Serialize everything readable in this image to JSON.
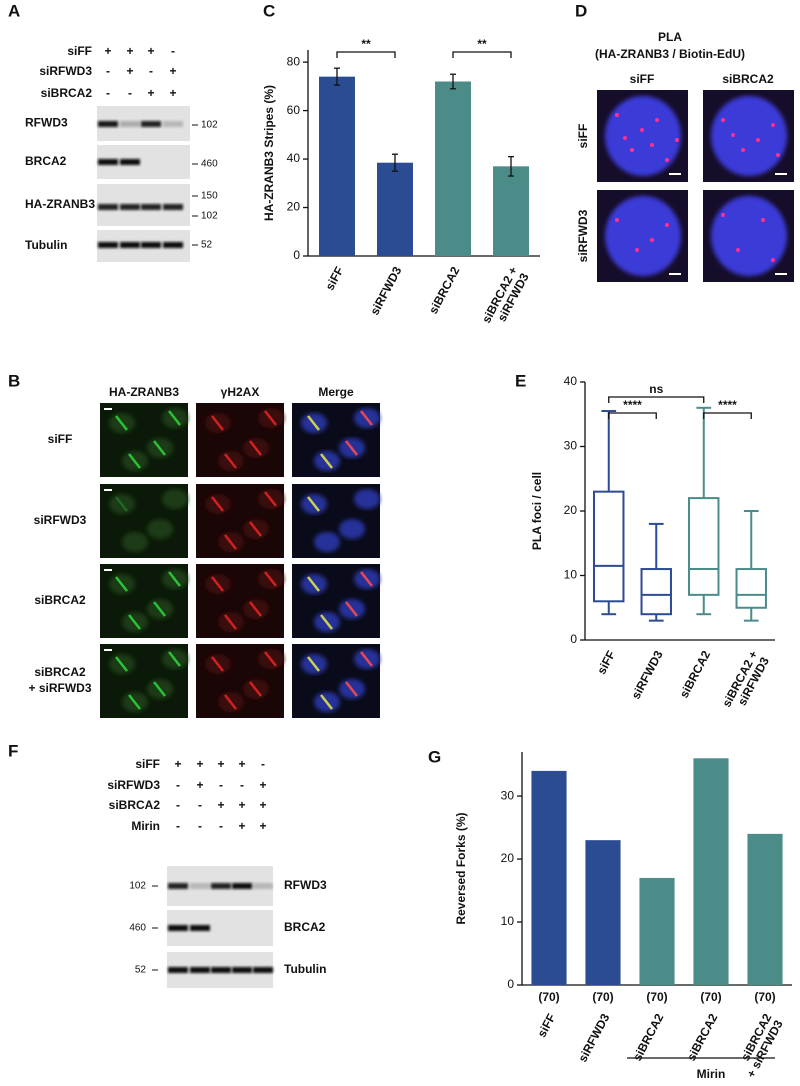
{
  "panel_labels": [
    "A",
    "B",
    "C",
    "D",
    "E",
    "F",
    "G"
  ],
  "blot_a": {
    "conditions": [
      {
        "name": "siFF",
        "signs": [
          "+",
          "+",
          "+",
          "-"
        ]
      },
      {
        "name": "siRFWD3",
        "signs": [
          "-",
          "+",
          "-",
          "+"
        ]
      },
      {
        "name": "siBRCA2",
        "signs": [
          "-",
          "-",
          "+",
          "+"
        ]
      }
    ],
    "rows": [
      {
        "name": "RFWD3",
        "markers": [
          "102"
        ]
      },
      {
        "name": "BRCA2",
        "markers": [
          "460"
        ]
      },
      {
        "name": "HA-ZRANB3",
        "markers": [
          "150",
          "102"
        ]
      },
      {
        "name": "Tubulin",
        "markers": [
          "52"
        ]
      }
    ]
  },
  "pla": {
    "title": [
      "PLA",
      "(HA-ZRANB3 / Biotin-EdU)"
    ],
    "columns": [
      "siFF",
      "siBRCA2"
    ],
    "rows": [
      "siFF",
      "siRFWD3"
    ]
  },
  "microscopy": {
    "columns": [
      "HA-ZRANB3",
      "γH2AX",
      "Merge"
    ],
    "rows": [
      [
        "siFF"
      ],
      [
        "siRFWD3"
      ],
      [
        "siBRCA2"
      ],
      [
        "siBRCA2",
        "+ siRFWD3"
      ]
    ]
  },
  "blot_f": {
    "conditions": [
      {
        "name": "siFF",
        "signs": [
          "+",
          "+",
          "+",
          "+",
          "-"
        ]
      },
      {
        "name": "siRFWD3",
        "signs": [
          "-",
          "+",
          "-",
          "-",
          "+"
        ]
      },
      {
        "name": "siBRCA2",
        "signs": [
          "-",
          "-",
          "+",
          "+",
          "+"
        ]
      },
      {
        "name": "Mirin",
        "signs": [
          "-",
          "-",
          "-",
          "+",
          "+"
        ]
      }
    ],
    "rows": [
      {
        "name": "RFWD3",
        "markers": [
          "102"
        ]
      },
      {
        "name": "BRCA2",
        "markers": [
          "460"
        ]
      },
      {
        "name": "Tubulin",
        "markers": [
          "52"
        ]
      }
    ]
  },
  "chart_data": [
    {
      "type": "bar",
      "ylabel": "HA-ZRANB3 Stripes (%)",
      "categories": [
        [
          "siFF"
        ],
        [
          "siRFWD3"
        ],
        [
          "siBRCA2"
        ],
        [
          "siBRCA2 +",
          "siRFWD3"
        ]
      ],
      "values": [
        74,
        38.5,
        72,
        37
      ],
      "errors": [
        3.5,
        3.5,
        3,
        4
      ],
      "colors": [
        "#2b4b93",
        "#2b4b93",
        "#4b8b88",
        "#4b8b88"
      ],
      "ylim": [
        0,
        85
      ],
      "yticks": [
        0,
        20,
        40,
        60,
        80
      ],
      "annotations": [
        "**",
        "**"
      ]
    },
    {
      "type": "box",
      "ylabel": "PLA foci / cell",
      "categories": [
        [
          "siFF"
        ],
        [
          "siRFWD3"
        ],
        [
          "siBRCA2"
        ],
        [
          "siBRCA2 +",
          "siRFWD3"
        ]
      ],
      "boxes": [
        {
          "min": 4,
          "q1": 6,
          "median": 11.5,
          "q3": 23,
          "max": 35.5
        },
        {
          "min": 3,
          "q1": 4,
          "median": 7,
          "q3": 11,
          "max": 18
        },
        {
          "min": 4,
          "q1": 7,
          "median": 11,
          "q3": 22,
          "max": 36
        },
        {
          "min": 3,
          "q1": 5,
          "median": 7,
          "q3": 11,
          "max": 20
        }
      ],
      "colors": [
        "#2b4b93",
        "#2b4b93",
        "#4b8b88",
        "#4b8b88"
      ],
      "ylim": [
        0,
        40
      ],
      "yticks": [
        0,
        10,
        20,
        30,
        40
      ],
      "annotations": [
        "ns",
        "****",
        "****"
      ]
    },
    {
      "type": "bar",
      "ylabel": "Reversed Forks (%)",
      "categories": [
        [
          "siFF"
        ],
        [
          "siRFWD3"
        ],
        [
          "siBRCA2"
        ],
        [
          "siBRCA2"
        ],
        [
          "siBRCA2",
          "+ siRFWD3"
        ]
      ],
      "values": [
        34,
        23,
        17,
        36,
        24
      ],
      "n_labels": [
        "(70)",
        "(70)",
        "(70)",
        "(70)",
        "(70)"
      ],
      "colors": [
        "#2b4b93",
        "#2b4b93",
        "#4b8b88",
        "#4b8b88",
        "#4b8b88"
      ],
      "ylim": [
        0,
        37
      ],
      "yticks": [
        0,
        10,
        20,
        30
      ],
      "group_label": "Mirin"
    }
  ]
}
